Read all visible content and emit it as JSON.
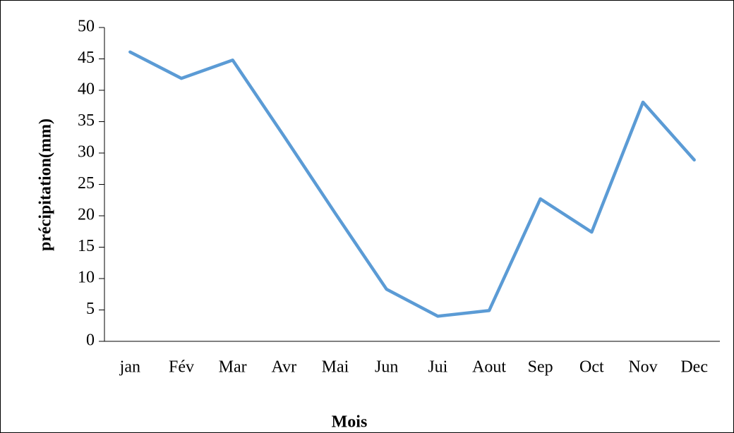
{
  "chart_data": {
    "type": "line",
    "x_label": "Mois",
    "y_label": "précipitation(mm)",
    "categories": [
      "jan",
      "Fév",
      "Mar",
      "Avr",
      "Mai",
      "Jun",
      "Jui",
      "Aout",
      "Sep",
      "Oct",
      "Nov",
      "Dec"
    ],
    "series": [
      {
        "name": "précipitation",
        "color": "#5b9bd5",
        "values": [
          46.1,
          41.9,
          44.8,
          32.7,
          20.4,
          8.3,
          4.0,
          4.9,
          22.7,
          17.4,
          38.1,
          28.9
        ]
      }
    ],
    "ylim": [
      0,
      50
    ],
    "yticks": [
      0,
      5,
      10,
      15,
      20,
      25,
      30,
      35,
      40,
      45,
      50
    ]
  }
}
